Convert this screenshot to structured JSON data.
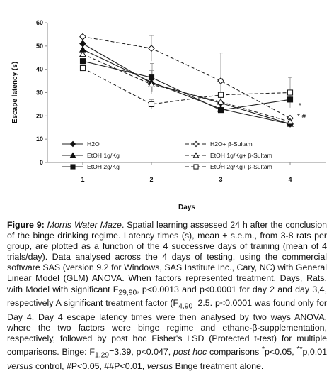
{
  "chart_data": {
    "type": "line",
    "ylabel": "Escape latency (s)",
    "xlabel": "Days",
    "ylim": [
      0,
      60
    ],
    "yticks": [
      "0",
      "10",
      "20",
      "30",
      "40",
      "50",
      "60"
    ],
    "categories": [
      "1",
      "2",
      "3",
      "4"
    ],
    "grid": false,
    "legend_position": "bottom",
    "series": [
      {
        "name": "H2O",
        "marker": "diamond",
        "filled": true,
        "dashed": false,
        "values": [
          51,
          34,
          25.5,
          16.5
        ],
        "err": [
          0,
          0,
          0,
          0
        ]
      },
      {
        "name": "EtOH 1g/Kg",
        "marker": "triangle",
        "filled": true,
        "dashed": false,
        "values": [
          48.5,
          34.5,
          23,
          16.5
        ],
        "err": [
          0,
          5,
          0,
          0
        ]
      },
      {
        "name": "EtOH 2g/Kg",
        "marker": "square",
        "filled": true,
        "dashed": false,
        "values": [
          43.5,
          36.5,
          22.5,
          27
        ],
        "err": [
          0,
          6,
          0,
          0
        ]
      },
      {
        "name": "H2O+ β-Sultam",
        "marker": "diamond",
        "filled": false,
        "dashed": true,
        "values": [
          54,
          49,
          35,
          19
        ],
        "err": [
          0,
          5.5,
          12,
          1
        ]
      },
      {
        "name": "EtOH 1g/Kg+ β-Sultam",
        "marker": "triangle",
        "filled": false,
        "dashed": true,
        "values": [
          46.5,
          33.5,
          26,
          17.5
        ],
        "err": [
          0,
          0,
          0,
          0
        ]
      },
      {
        "name": "EtOH 2g/Kg+ β-Sultam",
        "marker": "square",
        "filled": false,
        "dashed": true,
        "values": [
          40.5,
          25,
          29,
          30
        ],
        "err": [
          0,
          2,
          7,
          6.5
        ]
      }
    ],
    "annotations": [
      {
        "text": "*",
        "near": "EtOH 2g/Kg+ β-Sultam day 4"
      },
      {
        "text": "* #",
        "near": "EtOH 2g/Kg day 4"
      }
    ]
  },
  "caption": {
    "label": "Figure 9:",
    "title": "Morris Water Maze",
    "s1": ". Spatial learning assessed 24 h after the conclusion of the binge drinking regime. Latency times (s), mean ± s.e.m., from 3-8 rats per group, are plotted as a function of the 4 successive days of training (mean of 4 trials/day). Data analysed across the 4 days of testing, using the commercial software SAS (version 9.2 for Windows, SAS Institute Inc., Cary, NC) with General Linear Model (GLM) ANOVA. When factors represented treatment, Days, Rats, with Model with significant F",
    "sub1": "29,90",
    "s2": ", p<0.0013 and p<0.0001 for day 2 and day 3,4, respectively A significant treatment factor (F",
    "sub2": "4,90",
    "s3": "=2.5. p<0.0001 was found only for Day 4. Day 4 escape latency times were then analysed by two ways ANOVA, where the two factors were binge regime and ethane-β-supplementation, respectively, followed by post hoc Fisher's LSD (Protected t-test) for multiple comparisons. Binge: F",
    "sub3": "1,29",
    "s4": "=3.39, p<0.047, ",
    "posthoc": "post hoc",
    "s5": " comparisons ",
    "sym1": "*",
    "s6": "p<0.05, ",
    "sym2": "**",
    "s7": "p,0.01 ",
    "versus1": "versus",
    "s8": " control, #P<0.05, ##P<0.01, ",
    "versus2": "versus",
    "s9": " Binge treatment alone."
  }
}
